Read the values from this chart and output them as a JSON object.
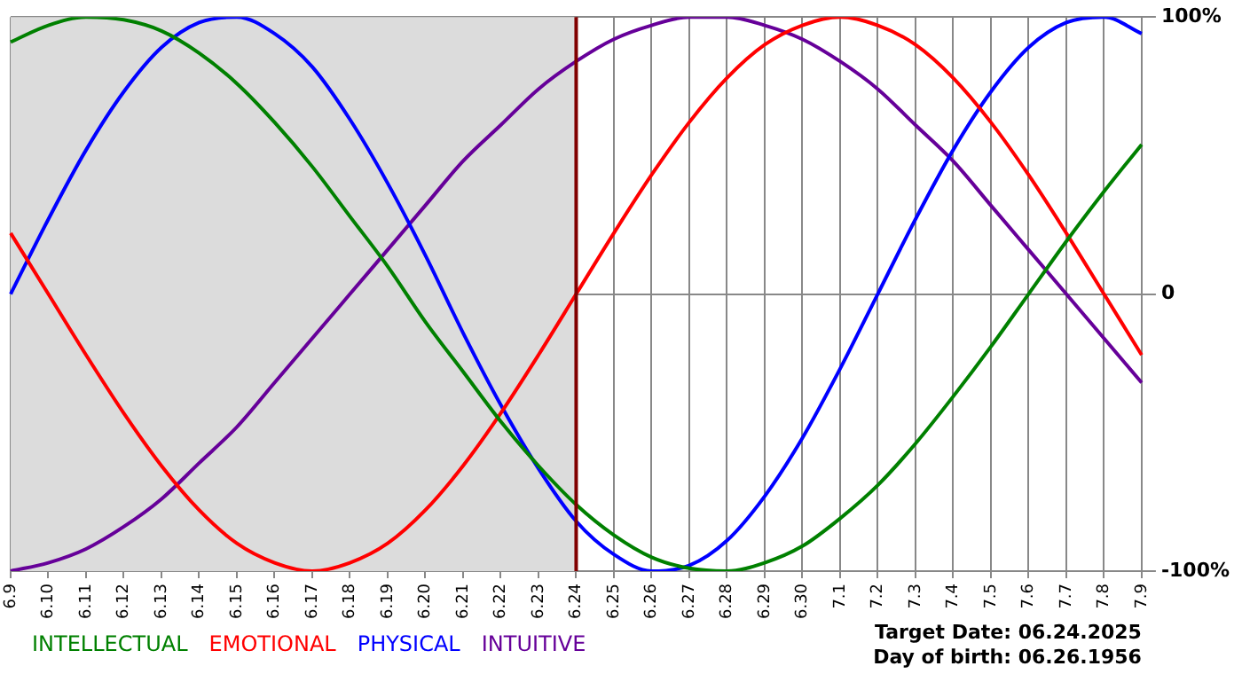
{
  "chart_data": {
    "type": "line",
    "categories": [
      "6.9",
      "6.10",
      "6.11",
      "6.12",
      "6.13",
      "6.14",
      "6.15",
      "6.16",
      "6.17",
      "6.18",
      "6.19",
      "6.20",
      "6.21",
      "6.22",
      "6.23",
      "6.24",
      "6.25",
      "6.26",
      "6.27",
      "6.28",
      "6.29",
      "6.30",
      "7.1",
      "7.2",
      "7.3",
      "7.4",
      "7.5",
      "7.6",
      "7.7",
      "7.8",
      "7.9"
    ],
    "series": [
      {
        "name": "INTELLECTUAL",
        "color": "#008000",
        "values": [
          91,
          97,
          100,
          99,
          95,
          87,
          76,
          62,
          46,
          28,
          10,
          -10,
          -28,
          -46,
          -62,
          -76,
          -87,
          -95,
          -99,
          -100,
          -97,
          -91,
          -81,
          -69,
          -54,
          -37,
          -19,
          0,
          19,
          37,
          54
        ]
      },
      {
        "name": "EMOTIONAL",
        "color": "#ff0000",
        "values": [
          22,
          0,
          -22,
          -43,
          -62,
          -78,
          -90,
          -97,
          -100,
          -97,
          -90,
          -78,
          -62,
          -43,
          -22,
          0,
          22,
          43,
          62,
          78,
          90,
          97,
          100,
          97,
          90,
          78,
          62,
          43,
          22,
          0,
          -22
        ]
      },
      {
        "name": "PHYSICAL",
        "color": "#0000ff",
        "values": [
          0,
          27,
          52,
          73,
          89,
          98,
          100,
          94,
          82,
          63,
          40,
          14,
          -14,
          -40,
          -63,
          -82,
          -94,
          -100,
          -98,
          -89,
          -73,
          -52,
          -27,
          0,
          27,
          52,
          73,
          89,
          98,
          100,
          94
        ]
      },
      {
        "name": "INTUITIVE",
        "color": "#660099",
        "values": [
          -100,
          -97,
          -92,
          -84,
          -74,
          -61,
          -48,
          -32,
          -16,
          0,
          16,
          32,
          48,
          61,
          74,
          84,
          92,
          97,
          100,
          100,
          97,
          92,
          84,
          74,
          61,
          48,
          32,
          16,
          0,
          -16,
          -32
        ]
      }
    ],
    "ylim": [
      -100,
      100
    ],
    "yticks": [
      {
        "value": -100,
        "label": "-100%"
      },
      0,
      {
        "value": 100,
        "label": "100%"
      }
    ],
    "grid": true,
    "legend": "bottom left",
    "marker": "none",
    "line_style": "solid",
    "ref_lines": [
      {
        "axis": "x",
        "value": "6.24",
        "color": "#800000"
      }
    ],
    "bands": [
      {
        "axis": "x",
        "from": "6.9",
        "to": "6.24",
        "color": "#dcdcdc"
      }
    ],
    "annotations": [
      "Target Date: 06.24.2025",
      "Day of birth: 06.26.1956"
    ]
  }
}
